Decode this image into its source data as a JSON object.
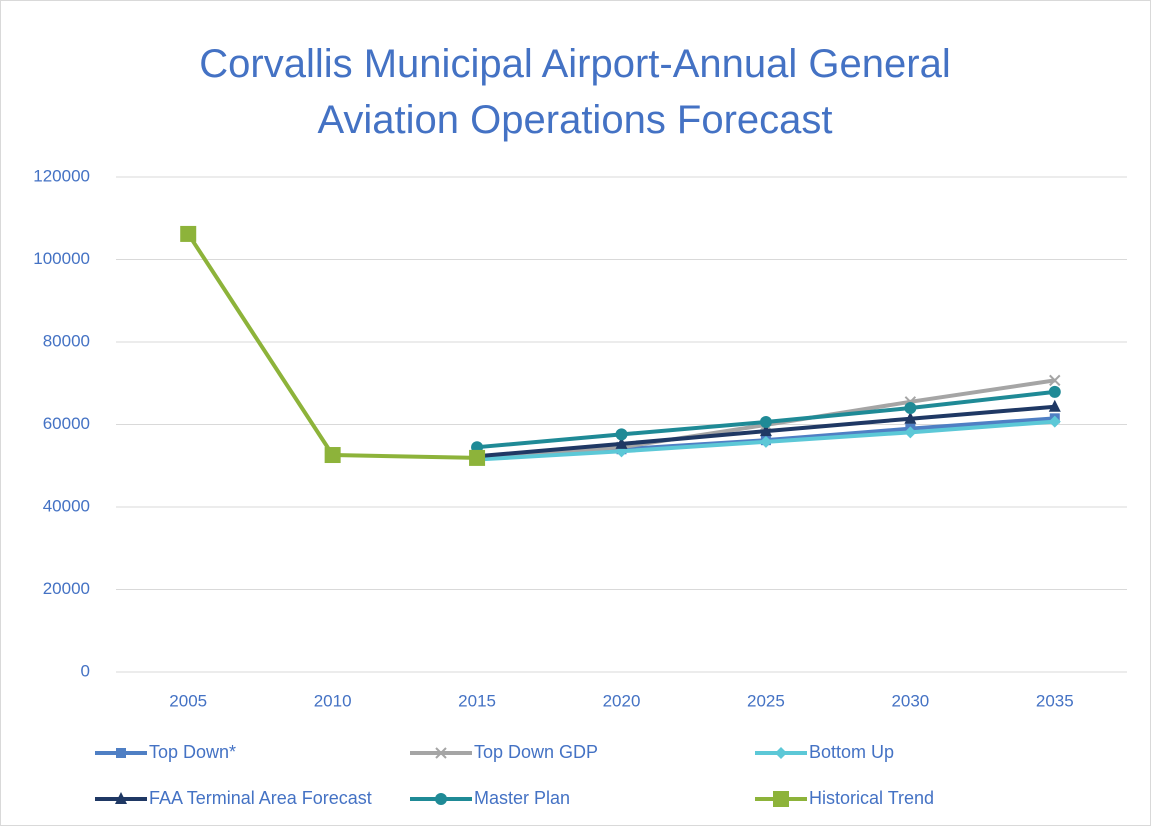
{
  "chart_data": {
    "type": "line",
    "title": "Corvallis Municipal Airport-Annual General Aviation Operations Forecast",
    "categories": [
      "2005",
      "2010",
      "2015",
      "2020",
      "2025",
      "2030",
      "2035"
    ],
    "ylim": [
      0,
      120000
    ],
    "yticks": [
      0,
      20000,
      40000,
      60000,
      80000,
      100000,
      120000
    ],
    "grid": true,
    "legend": "bottom",
    "series": [
      {
        "name": "Top Down*",
        "color": "#4f7fc4",
        "marker": "square",
        "values": [
          null,
          null,
          51900,
          54000,
          56200,
          59000,
          61500
        ]
      },
      {
        "name": "Top Down GDP",
        "color": "#a5a5a5",
        "marker": "x",
        "values": [
          null,
          null,
          51900,
          54500,
          59900,
          65500,
          70700
        ]
      },
      {
        "name": "Bottom Up",
        "color": "#5cc8d7",
        "marker": "diamond",
        "values": [
          null,
          null,
          51500,
          53500,
          55800,
          58100,
          60700
        ]
      },
      {
        "name": "FAA Terminal Area Forecast",
        "color": "#1f3864",
        "marker": "triangle",
        "values": [
          null,
          null,
          52300,
          55300,
          58400,
          61400,
          64300
        ]
      },
      {
        "name": "Master Plan",
        "color": "#1f8a96",
        "marker": "circle",
        "values": [
          null,
          null,
          54500,
          57600,
          60600,
          64000,
          67900
        ]
      },
      {
        "name": "Historical Trend",
        "color": "#8db33a",
        "marker": "bigsquare",
        "values": [
          106200,
          52600,
          51900,
          null,
          null,
          null,
          null
        ]
      }
    ]
  }
}
